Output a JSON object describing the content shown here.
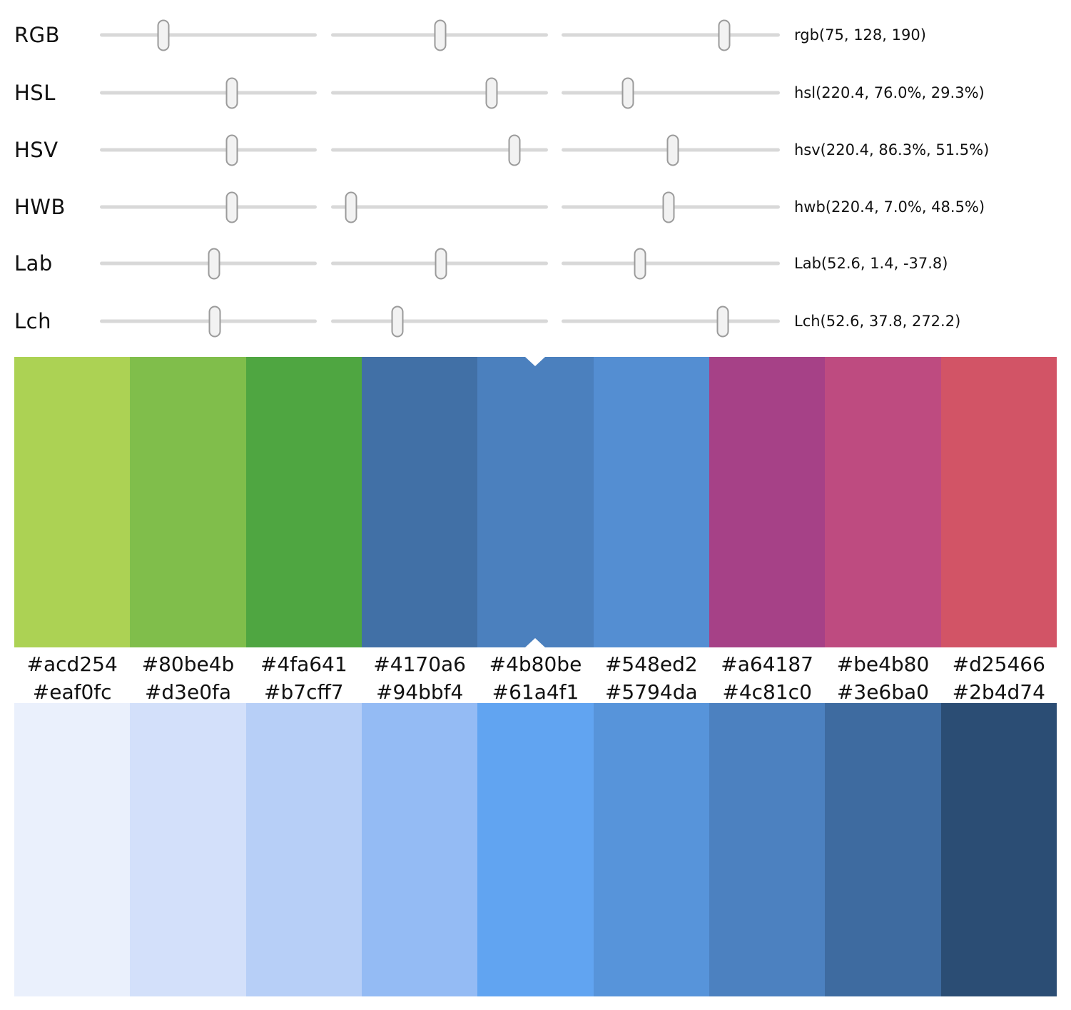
{
  "app": {
    "background": "#ffffff",
    "text_color": "#111111",
    "track_color": "#d8d8d8",
    "handle_fill_color": "#f2f2f2",
    "handle_border_color": "#9b9b9b",
    "selection_marker_color": "#ffffff"
  },
  "sliders": {
    "rows": [
      {
        "label": "RGB",
        "value": "rgb(75, 128, 190)",
        "handle_pos": [
          29.4,
          50.2,
          74.5
        ]
      },
      {
        "label": "HSL",
        "value": "hsl(220.4, 76.0%, 29.3%)",
        "handle_pos": [
          60.8,
          74.0,
          30.4
        ]
      },
      {
        "label": "HSV",
        "value": "hsv(220.4, 86.3%, 51.5%)",
        "handle_pos": [
          60.8,
          84.5,
          51.0
        ]
      },
      {
        "label": "HWB",
        "value": "hwb(220.4, 7.0%, 48.5%)",
        "handle_pos": [
          60.8,
          9.2,
          49.0
        ]
      },
      {
        "label": "Lab",
        "value": "Lab(52.6, 1.4, -37.8)",
        "handle_pos": [
          52.5,
          50.5,
          35.9
        ]
      },
      {
        "label": "Lch",
        "value": "Lch(52.6, 37.8, 272.2)",
        "handle_pos": [
          52.8,
          30.7,
          74.0
        ]
      }
    ]
  },
  "palette_top": {
    "selected_index": 4,
    "swatches": [
      "#acd254",
      "#80be4b",
      "#4fa641",
      "#4170a6",
      "#4b80be",
      "#548ed2",
      "#a64187",
      "#be4b80",
      "#d25466"
    ]
  },
  "palette_bottom": {
    "swatches": [
      "#eaf0fc",
      "#d3e0fa",
      "#b7cff7",
      "#94bbf4",
      "#61a4f1",
      "#5794da",
      "#4c81c0",
      "#3e6ba0",
      "#2b4d74"
    ]
  }
}
